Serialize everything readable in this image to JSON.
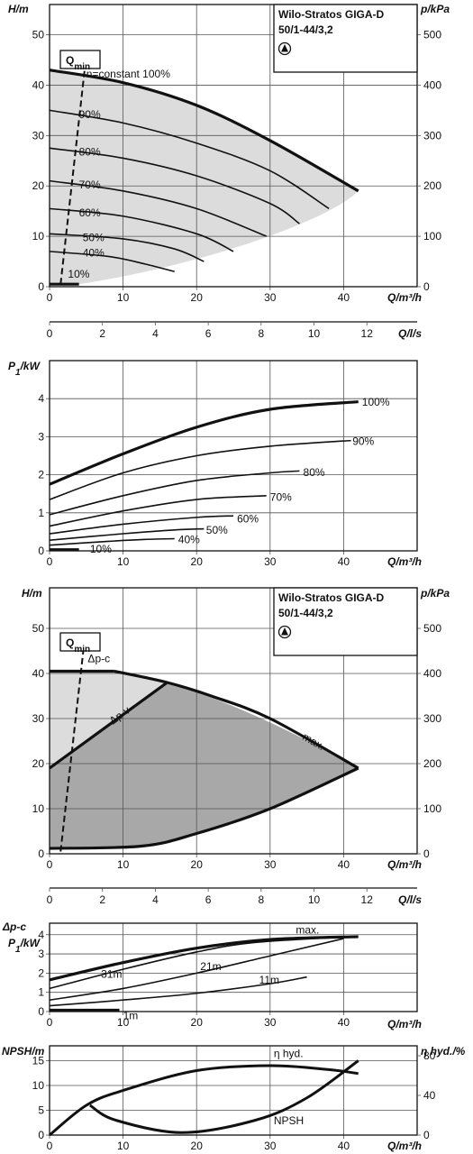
{
  "chart_data": [
    {
      "type": "line",
      "panel": "H-Q (n=constant)",
      "title_box": {
        "line1": "Wilo-Stratos GIGA-D",
        "line2": "50/1-44/3,2"
      },
      "ylabel": "H/m",
      "ylabel_right": "p/kPa",
      "xlabel": "Q/m³/h",
      "xlim": [
        0,
        50
      ],
      "ylim": [
        0,
        56
      ],
      "x_ticks": [
        "0",
        "10",
        "20",
        "30",
        "40"
      ],
      "y_ticks": [
        "0",
        "10",
        "20",
        "30",
        "40",
        "50"
      ],
      "y_right_ticks": [
        "0",
        "100",
        "200",
        "300",
        "400",
        "500"
      ],
      "qmin_label": "Q",
      "qmin_sub": "min",
      "series": [
        {
          "name": "n=constant 100%",
          "label": "n=constant 100%",
          "bold": true,
          "x": [
            0,
            10,
            20,
            30,
            42
          ],
          "y": [
            43,
            40.5,
            36,
            29,
            19
          ]
        },
        {
          "name": "90%",
          "label": "90%",
          "x": [
            0,
            10,
            20,
            30,
            38
          ],
          "y": [
            35,
            32.5,
            28.5,
            23,
            15.5
          ]
        },
        {
          "name": "80%",
          "label": "80%",
          "x": [
            0,
            10,
            20,
            30,
            34
          ],
          "y": [
            27.5,
            25.5,
            22,
            16.5,
            12.5
          ]
        },
        {
          "name": "70%",
          "label": "70%",
          "x": [
            0,
            10,
            20,
            29.5
          ],
          "y": [
            21,
            19,
            15.5,
            10
          ]
        },
        {
          "name": "60%",
          "label": "60%",
          "x": [
            0,
            10,
            20,
            25
          ],
          "y": [
            15.5,
            14,
            10.5,
            7
          ]
        },
        {
          "name": "50%",
          "label": "50%",
          "x": [
            0,
            10,
            17,
            21
          ],
          "y": [
            10.5,
            9.5,
            7.5,
            5
          ]
        },
        {
          "name": "40%",
          "label": "40%",
          "x": [
            0,
            8,
            13,
            17
          ],
          "y": [
            7,
            6,
            4.5,
            3
          ]
        },
        {
          "name": "10%",
          "label": "10%",
          "bold": true,
          "x": [
            0,
            4
          ],
          "y": [
            0.5,
            0.5
          ]
        }
      ]
    },
    {
      "type": "axis",
      "panel": "Q in l/s",
      "xlabel": "Q/l/s",
      "xlim": [
        0,
        13.9
      ],
      "x_ticks": [
        "0",
        "2",
        "4",
        "6",
        "8",
        "10",
        "12"
      ]
    },
    {
      "type": "line",
      "panel": "P1-Q (n=constant)",
      "ylabel": "P",
      "ylabel_sub": "1",
      "ylabel_unit": "/kW",
      "xlabel": "Q/m³/h",
      "xlim": [
        0,
        50
      ],
      "ylim": [
        0,
        5
      ],
      "x_ticks": [
        "0",
        "10",
        "20",
        "30",
        "40"
      ],
      "y_ticks": [
        "0",
        "1",
        "2",
        "3",
        "4"
      ],
      "series": [
        {
          "name": "100%",
          "label": "100%",
          "bold": true,
          "x": [
            0,
            10,
            20,
            30,
            42
          ],
          "y": [
            1.75,
            2.55,
            3.25,
            3.72,
            3.92
          ]
        },
        {
          "name": "90%",
          "label": "90%",
          "x": [
            0,
            10,
            20,
            30,
            41
          ],
          "y": [
            1.35,
            2.05,
            2.5,
            2.75,
            2.9
          ]
        },
        {
          "name": "80%",
          "label": "80%",
          "x": [
            0,
            10,
            20,
            30,
            34
          ],
          "y": [
            0.95,
            1.45,
            1.85,
            2.05,
            2.1
          ]
        },
        {
          "name": "70%",
          "label": "70%",
          "x": [
            0,
            10,
            20,
            29.5
          ],
          "y": [
            0.65,
            1.05,
            1.35,
            1.45
          ]
        },
        {
          "name": "60%",
          "label": "60%",
          "x": [
            0,
            10,
            20,
            25
          ],
          "y": [
            0.45,
            0.7,
            0.88,
            0.92
          ]
        },
        {
          "name": "50%",
          "label": "50%",
          "x": [
            0,
            10,
            17,
            21
          ],
          "y": [
            0.28,
            0.45,
            0.55,
            0.58
          ]
        },
        {
          "name": "40%",
          "label": "40%",
          "x": [
            0,
            8,
            13,
            17
          ],
          "y": [
            0.15,
            0.25,
            0.3,
            0.32
          ]
        },
        {
          "name": "10%",
          "label": "10%",
          "bold": true,
          "x": [
            0,
            4
          ],
          "y": [
            0.03,
            0.03
          ]
        }
      ]
    },
    {
      "type": "area",
      "panel": "H-Q (Δp-c / Δp-v)",
      "title_box": {
        "line1": "Wilo-Stratos GIGA-D",
        "line2": "50/1-44/3,2"
      },
      "ylabel": "H/m",
      "ylabel_right": "p/kPa",
      "xlabel": "Q/m³/h",
      "xlim": [
        0,
        50
      ],
      "ylim": [
        0,
        59
      ],
      "x_ticks": [
        "0",
        "10",
        "20",
        "30",
        "40"
      ],
      "y_ticks": [
        "0",
        "10",
        "20",
        "30",
        "40",
        "50"
      ],
      "y_right_ticks": [
        "0",
        "100",
        "200",
        "300",
        "400",
        "500"
      ],
      "qmin_label": "Q",
      "qmin_sub": "min",
      "mode_labels": {
        "dpc": "Δp-c",
        "dpv": "Δp-v",
        "max": "max."
      },
      "max_curve": {
        "x": [
          8.8,
          16,
          22,
          30,
          42
        ],
        "y": [
          40.5,
          38,
          35,
          30,
          19
        ]
      },
      "dpc_line": {
        "x": [
          0,
          8.8
        ],
        "y": [
          40.5,
          40.5
        ]
      },
      "dpv_line": {
        "x": [
          0,
          16
        ],
        "y": [
          19,
          38
        ]
      },
      "min_curve": {
        "x": [
          0,
          12.5,
          20,
          30,
          42
        ],
        "y": [
          1.2,
          1.7,
          4.5,
          10,
          19
        ]
      }
    },
    {
      "type": "axis",
      "panel": "Q in l/s",
      "xlabel": "Q/l/s",
      "xlim": [
        0,
        13.9
      ],
      "x_ticks": [
        "0",
        "2",
        "4",
        "6",
        "8",
        "10",
        "12"
      ]
    },
    {
      "type": "line",
      "panel": "P1-Q (Δp-c)",
      "ylabel_top": "Δp-c",
      "ylabel": "P",
      "ylabel_sub": "1",
      "ylabel_unit": "/kW",
      "xlabel": "Q/m³/h",
      "xlim": [
        0,
        50
      ],
      "ylim": [
        0,
        4.6
      ],
      "x_ticks": [
        "0",
        "10",
        "20",
        "30",
        "40"
      ],
      "y_ticks": [
        "0",
        "1",
        "2",
        "3",
        "4"
      ],
      "series": [
        {
          "name": "max.",
          "label": "max.",
          "bold": true,
          "x": [
            0,
            10,
            20,
            30,
            42
          ],
          "y": [
            1.65,
            2.55,
            3.3,
            3.75,
            3.9
          ]
        },
        {
          "name": "31m",
          "label": "31m",
          "x": [
            0,
            10,
            20,
            28,
            41
          ],
          "y": [
            1.2,
            2.2,
            3.1,
            3.6,
            3.9
          ]
        },
        {
          "name": "21m",
          "label": "21m",
          "x": [
            0,
            10,
            20,
            30,
            40
          ],
          "y": [
            0.6,
            1.2,
            2.0,
            2.9,
            3.8
          ]
        },
        {
          "name": "11m",
          "label": "11m",
          "x": [
            0,
            10,
            20,
            30,
            35
          ],
          "y": [
            0.3,
            0.6,
            0.95,
            1.45,
            1.8
          ]
        },
        {
          "name": "1m",
          "label": "1m",
          "bold": true,
          "x": [
            0,
            9.5
          ],
          "y": [
            0.07,
            0.07
          ]
        }
      ]
    },
    {
      "type": "line",
      "panel": "NPSH / η hyd.",
      "ylabel": "NPSH/m",
      "ylabel_right": "η hyd./%",
      "xlabel": "Q/m³/h",
      "xlim": [
        0,
        50
      ],
      "ylim": [
        0,
        18
      ],
      "x_ticks": [
        "0",
        "10",
        "20",
        "30",
        "40"
      ],
      "y_ticks": [
        "0",
        "5",
        "10",
        "15"
      ],
      "y_right_ticks": [
        "0",
        "40",
        "80"
      ],
      "series": [
        {
          "name": "η hyd.",
          "label": "η hyd.",
          "axis": "right",
          "x": [
            0,
            5,
            10,
            20,
            30,
            38,
            42
          ],
          "y": [
            0,
            30,
            45,
            65,
            70,
            66,
            62
          ]
        },
        {
          "name": "NPSH",
          "label": "NPSH",
          "axis": "left",
          "x": [
            5.5,
            9,
            18,
            28,
            35,
            42
          ],
          "y": [
            6,
            3,
            0.5,
            3,
            7.5,
            15
          ]
        }
      ]
    }
  ]
}
